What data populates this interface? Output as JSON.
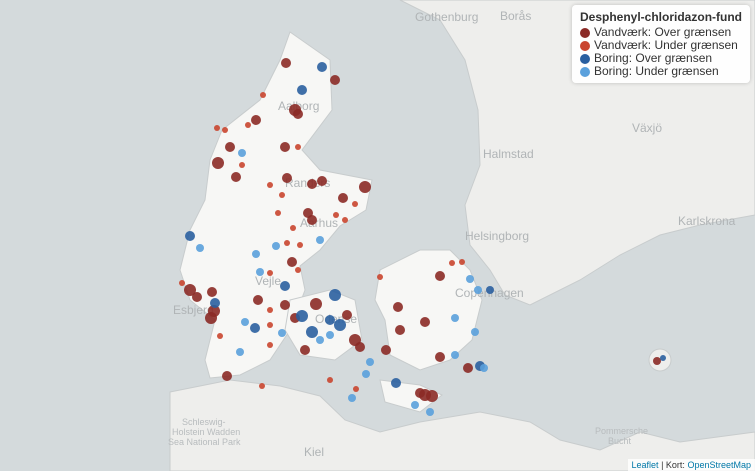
{
  "legend": {
    "title": "Desphenyl-chloridazon-fund",
    "items": [
      {
        "name": "Vandværk: Over grænsen",
        "color": "#8b2a26"
      },
      {
        "name": "Vandværk: Under grænsen",
        "color": "#c9452f"
      },
      {
        "name": "Boring: Over grænsen",
        "color": "#2a5fa0"
      },
      {
        "name": "Boring: Under grænsen",
        "color": "#5aa0dc"
      }
    ]
  },
  "places": {
    "gothenburg": "Gothenburg",
    "boras": "Borås",
    "aalborg": "Aalborg",
    "randers": "Randers",
    "aarhus": "Aarhus",
    "vejle": "Vejle",
    "esbjerg": "Esbjerg",
    "odense": "Odense",
    "halmstad": "Halmstad",
    "helsingborg": "Helsingborg",
    "copenhagen": "Copenhagen",
    "vaxjo": "Växjö",
    "karlskrona": "Karlskrona",
    "kiel": "Kiel",
    "wadden1": "Schleswig-",
    "wadden2": "Holstein Wadden",
    "wadden3": "Sea National Park",
    "pommersche1": "Pommersche",
    "pommersche2": "Bucht"
  },
  "attribution": {
    "leaflet": "Leaflet",
    "separator": "| Kort:",
    "osm": "OpenStreetMap"
  }
}
